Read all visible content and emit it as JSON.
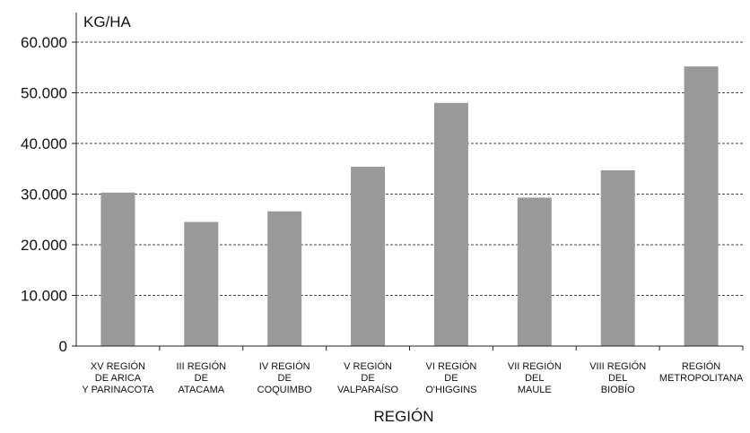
{
  "chart_data": {
    "type": "bar",
    "ylabel": "KG/HA",
    "xlabel": "REGIÓN",
    "ylim": [
      0,
      60000
    ],
    "yticks": [
      0,
      10000,
      20000,
      30000,
      40000,
      50000,
      60000
    ],
    "ytick_labels": [
      "0",
      "10.000",
      "20.000",
      "30.000",
      "40.000",
      "50.000",
      "60.000"
    ],
    "grid": true,
    "categories": [
      [
        "XV REGIÓN",
        "DE ARICA",
        "Y PARINACOTA"
      ],
      [
        "III REGIÓN",
        "DE",
        "ATACAMA"
      ],
      [
        "IV REGIÓN",
        "DE",
        "COQUIMBO"
      ],
      [
        "V REGIÓN",
        "DE",
        "VALPARAÍSO"
      ],
      [
        "VI REGIÓN",
        "DE",
        "O'HIGGINS"
      ],
      [
        "VII REGIÓN",
        "DEL",
        "MAULE"
      ],
      [
        "VIII REGIÓN",
        "DEL",
        "BIOBÍO"
      ],
      [
        "REGIÓN",
        "METROPOLITANA"
      ]
    ],
    "values": [
      30300,
      24500,
      26600,
      35400,
      48000,
      29300,
      34700,
      55200
    ],
    "colors": {
      "bar": "#999999",
      "axis": "#222222",
      "grid": "#444444"
    }
  }
}
